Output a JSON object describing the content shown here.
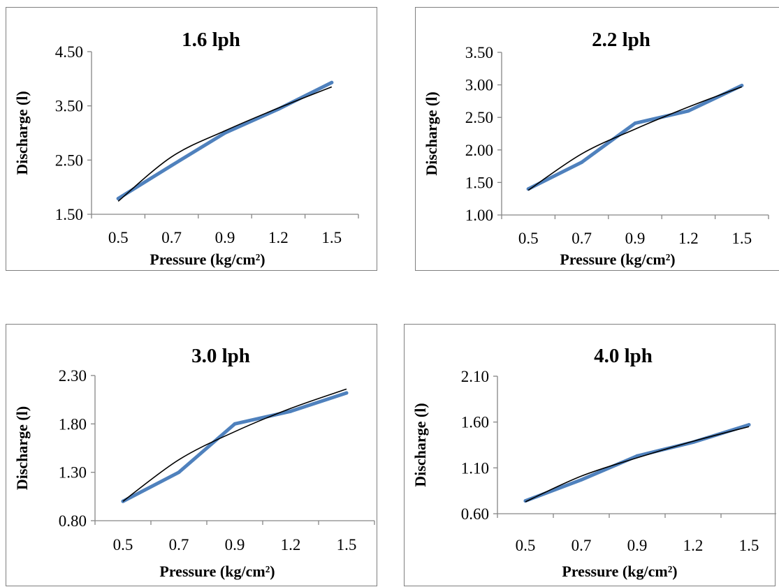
{
  "chart_data": [
    {
      "type": "line",
      "title": "1.6 lph",
      "xlabel": "Pressure (kg/cm²)",
      "ylabel": "Discharge (l)",
      "categories": [
        "0.5",
        "0.7",
        "0.9",
        "1.2",
        "1.5"
      ],
      "ylim": [
        1.5,
        4.5
      ],
      "yticks": [
        "1.50",
        "2.50",
        "3.50",
        "4.50"
      ],
      "values": [
        1.79,
        2.4,
        3.0,
        3.44,
        3.93
      ],
      "trend": [
        1.74,
        2.56,
        3.04,
        3.46,
        3.85
      ],
      "grid": false,
      "colors": {
        "series": "#4f81bd",
        "trend": "#000000"
      }
    },
    {
      "type": "line",
      "title": "2.2 lph",
      "xlabel": "Pressure (kg/cm²)",
      "ylabel": "Discharge (l)",
      "categories": [
        "0.5",
        "0.7",
        "0.9",
        "1.2",
        "1.5"
      ],
      "ylim": [
        1.0,
        3.5
      ],
      "yticks": [
        "1.00",
        "1.50",
        "2.00",
        "2.50",
        "3.00",
        "3.50"
      ],
      "values": [
        1.4,
        1.81,
        2.41,
        2.6,
        2.99
      ],
      "trend": [
        1.38,
        1.94,
        2.32,
        2.66,
        2.97
      ],
      "grid": false,
      "colors": {
        "series": "#4f81bd",
        "trend": "#000000"
      }
    },
    {
      "type": "line",
      "title": "3.0 lph",
      "xlabel": "Pressure (kg/cm²)",
      "ylabel": "Discharge (l)",
      "categories": [
        "0.5",
        "0.7",
        "0.9",
        "1.2",
        "1.5"
      ],
      "ylim": [
        0.8,
        2.3
      ],
      "yticks": [
        "0.80",
        "1.30",
        "1.80",
        "2.30"
      ],
      "values": [
        1.0,
        1.3,
        1.8,
        1.93,
        2.12
      ],
      "trend": [
        1.0,
        1.43,
        1.72,
        1.96,
        2.16
      ],
      "grid": false,
      "colors": {
        "series": "#4f81bd",
        "trend": "#000000"
      }
    },
    {
      "type": "line",
      "title": "4.0 lph",
      "xlabel": "Pressure (kg/cm²)",
      "ylabel": "Discharge (l)",
      "categories": [
        "0.5",
        "0.7",
        "0.9",
        "1.2",
        "1.5"
      ],
      "ylim": [
        0.6,
        2.1
      ],
      "yticks": [
        "0.60",
        "1.10",
        "1.60",
        "2.10"
      ],
      "values": [
        0.74,
        0.97,
        1.23,
        1.38,
        1.57
      ],
      "trend": [
        0.73,
        1.01,
        1.21,
        1.39,
        1.55
      ],
      "grid": false,
      "colors": {
        "series": "#4f81bd",
        "trend": "#000000"
      }
    }
  ]
}
